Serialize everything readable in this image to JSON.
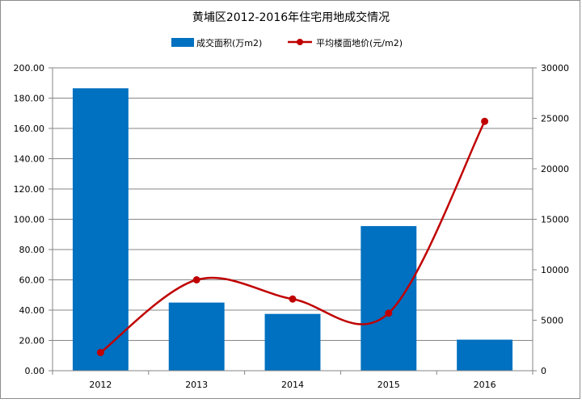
{
  "chart_data": {
    "type": "bar+line",
    "title": "黄埔区2012-2016年住宅用地成交情况",
    "categories": [
      "2012",
      "2013",
      "2014",
      "2015",
      "2016"
    ],
    "series": [
      {
        "name": "成交面积(万m2)",
        "type": "bar",
        "axis": "left",
        "color": "#0070c0",
        "values": [
          186.5,
          45.0,
          37.5,
          95.5,
          20.5
        ]
      },
      {
        "name": "平均楼面地价(元/m2)",
        "type": "line",
        "axis": "right",
        "smooth": true,
        "color": "#c00000",
        "values": [
          1800,
          9000,
          7100,
          5700,
          24700
        ]
      }
    ],
    "y_left": {
      "ylim": [
        0,
        200
      ],
      "ticks": [
        0,
        20,
        40,
        60,
        80,
        100,
        120,
        140,
        160,
        180,
        200
      ],
      "tick_labels": [
        "0.00",
        "20.00",
        "40.00",
        "60.00",
        "80.00",
        "100.00",
        "120.00",
        "140.00",
        "160.00",
        "180.00",
        "200.00"
      ]
    },
    "y_right": {
      "ylim": [
        0,
        30000
      ],
      "ticks": [
        0,
        5000,
        10000,
        15000,
        20000,
        25000,
        30000
      ],
      "tick_labels": [
        "0",
        "5000",
        "10000",
        "15000",
        "20000",
        "25000",
        "30000"
      ]
    },
    "grid": true,
    "legend_position": "top"
  }
}
